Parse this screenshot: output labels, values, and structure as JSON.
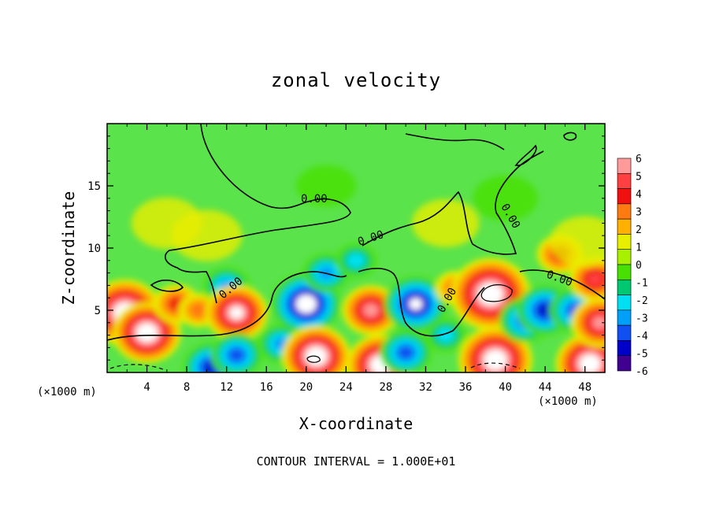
{
  "chart_data": {
    "type": "heatmap",
    "title": "zonal velocity",
    "xlabel": "X-coordinate",
    "ylabel": "Z-coordinate",
    "x_unit_label_left": "(×1000 m)",
    "x_unit_label_right": "(×1000 m)",
    "note": "CONTOUR INTERVAL = 1.000E+01",
    "xlim": [
      0,
      50
    ],
    "ylim": [
      0,
      20
    ],
    "x_ticks": [
      4,
      8,
      12,
      16,
      20,
      24,
      28,
      32,
      36,
      40,
      44,
      48
    ],
    "x_tick_labels": [
      "4",
      "8",
      "12",
      "16",
      "20",
      "24",
      "28",
      "32",
      "36",
      "40",
      "44",
      "48"
    ],
    "y_ticks": [
      5,
      10,
      15
    ],
    "y_tick_labels": [
      "5",
      "10",
      "15"
    ],
    "colorbar": {
      "labels": [
        "6",
        "5",
        "4",
        "3",
        "2",
        "1",
        "0",
        "-1",
        "-2",
        "-3",
        "-4",
        "-5",
        "-6"
      ],
      "colors": [
        "#ff9a9a",
        "#ff4040",
        "#f01010",
        "#ff7a10",
        "#ffb000",
        "#e8ee00",
        "#a8f000",
        "#48e000",
        "#00c870",
        "#00e0f0",
        "#00a0f8",
        "#1050f0",
        "#0000c8",
        "#400090"
      ]
    },
    "contour_labels": [
      "0.00",
      "0.00",
      "0.00",
      "0.00",
      "0.00",
      "0.00"
    ],
    "background_color": "#5ae34a",
    "features": [
      {
        "x": 1.8,
        "z": 4.8,
        "value": 9
      },
      {
        "x": 4.0,
        "z": 3.2,
        "value": 8
      },
      {
        "x": 7.0,
        "z": 5.5,
        "value": 4
      },
      {
        "x": 9.2,
        "z": 5.0,
        "value": 3
      },
      {
        "x": 10.5,
        "z": 0.4,
        "value": -6
      },
      {
        "x": 12.0,
        "z": 6.9,
        "value": -4
      },
      {
        "x": 13.0,
        "z": 4.8,
        "value": 7
      },
      {
        "x": 13.0,
        "z": 1.4,
        "value": -5
      },
      {
        "x": 17.5,
        "z": 2.3,
        "value": -4
      },
      {
        "x": 20.0,
        "z": 5.5,
        "value": -8
      },
      {
        "x": 21.0,
        "z": 1.3,
        "value": 8
      },
      {
        "x": 22.0,
        "z": 8.0,
        "value": -4
      },
      {
        "x": 25.0,
        "z": 9.0,
        "value": -3
      },
      {
        "x": 26.5,
        "z": 5.0,
        "value": 6
      },
      {
        "x": 27.5,
        "z": 0.6,
        "value": 8
      },
      {
        "x": 30.0,
        "z": 1.6,
        "value": -5
      },
      {
        "x": 31.0,
        "z": 5.5,
        "value": -7
      },
      {
        "x": 34.0,
        "z": 3.0,
        "value": -3
      },
      {
        "x": 35.0,
        "z": 6.8,
        "value": 3
      },
      {
        "x": 38.5,
        "z": 6.3,
        "value": 10
      },
      {
        "x": 39.0,
        "z": 1.0,
        "value": 9
      },
      {
        "x": 42.0,
        "z": 4.2,
        "value": -5
      },
      {
        "x": 44.0,
        "z": 5.0,
        "value": -6
      },
      {
        "x": 45.5,
        "z": 9.5,
        "value": 4
      },
      {
        "x": 47.0,
        "z": 5.0,
        "value": -5
      },
      {
        "x": 48.5,
        "z": 0.7,
        "value": 8
      },
      {
        "x": 49.5,
        "z": 4.0,
        "value": 6
      },
      {
        "x": 49.0,
        "z": 7.5,
        "value": 5
      },
      {
        "x": 6.0,
        "z": 12.0,
        "value": 1.5
      },
      {
        "x": 10.0,
        "z": 11.0,
        "value": 1.5
      },
      {
        "x": 34.0,
        "z": 12.0,
        "value": 1.2
      },
      {
        "x": 48.0,
        "z": 10.5,
        "value": 1.5
      },
      {
        "x": 40.0,
        "z": 14.0,
        "value": -1
      },
      {
        "x": 22.0,
        "z": 15.0,
        "value": -0.6
      }
    ]
  }
}
